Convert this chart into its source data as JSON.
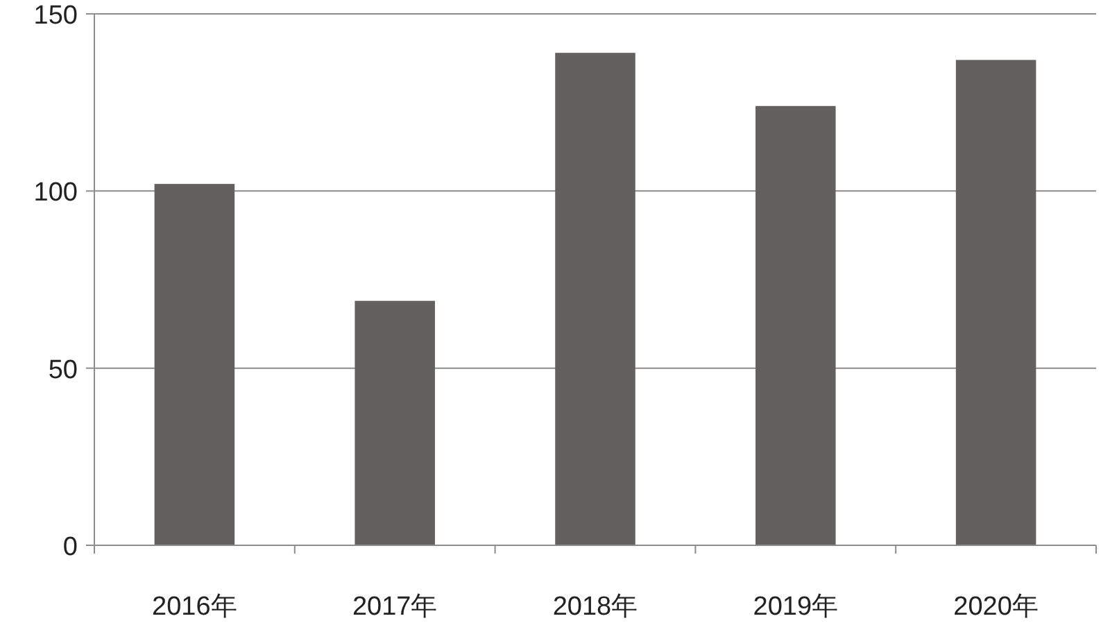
{
  "chart_data": {
    "type": "bar",
    "categories": [
      "2016年",
      "2017年",
      "2018年",
      "2019年",
      "2020年"
    ],
    "values": [
      102,
      69,
      139,
      124,
      137
    ],
    "color": "#63605d",
    "ylim": [
      0,
      150
    ],
    "yticks": [
      0,
      50,
      100,
      150
    ],
    "grid": "y"
  }
}
